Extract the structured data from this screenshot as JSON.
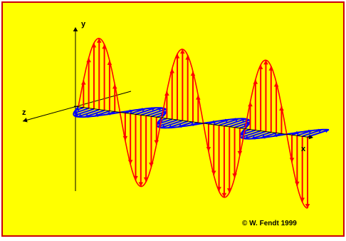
{
  "axes": {
    "y_label": "y",
    "z_label": "z",
    "x_label": "x"
  },
  "credit": "© W. Fendt 1999",
  "colors": {
    "background": "#ffff00",
    "frame": "#cc0000",
    "electric_field": "#ff0000",
    "magnetic_field": "#0000ff",
    "axes": "#000000"
  }
}
